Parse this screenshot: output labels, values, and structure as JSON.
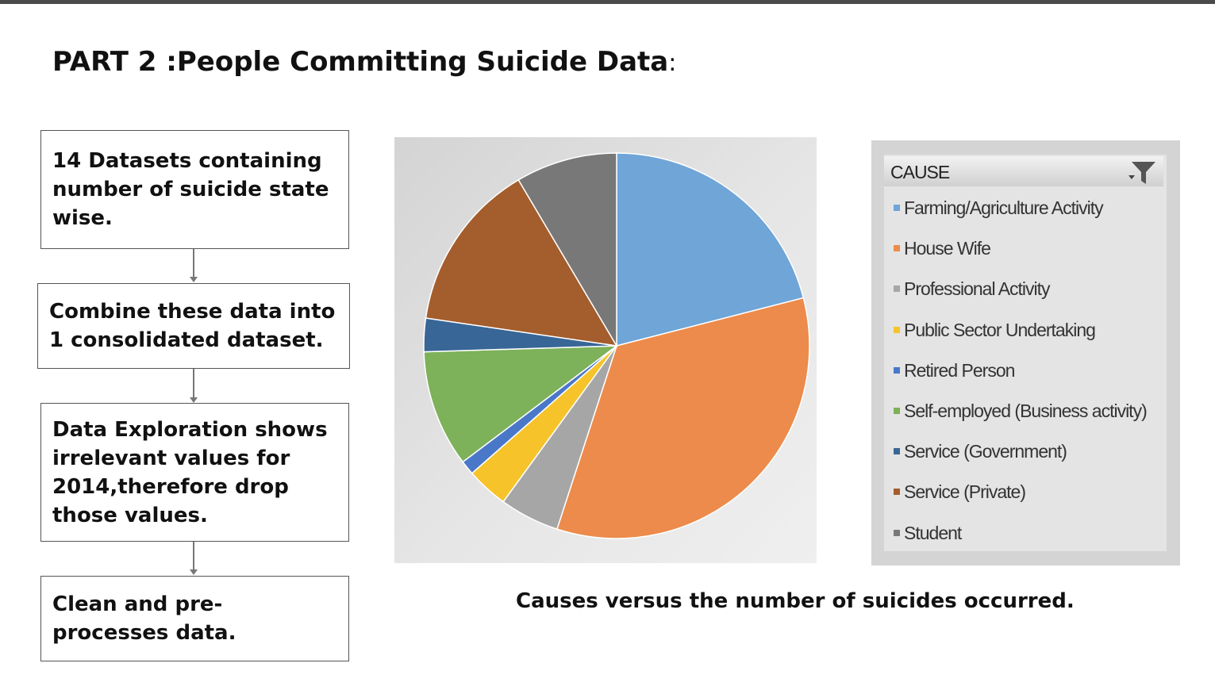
{
  "title": {
    "main": "PART 2 :People Committing Suicide Data",
    "colon": ":"
  },
  "flow": {
    "step1": "14 Datasets containing number of suicide state wise.",
    "step2": "Combine these data into 1 consolidated dataset.",
    "step3": "Data Exploration shows irrelevant values for 2014,therefore drop those values.",
    "step4": "Clean and pre-processes data."
  },
  "caption": "Causes versus the number of suicides occurred.",
  "chart_data": {
    "type": "pie",
    "title": "",
    "legend_title": "CAUSE",
    "legend_position": "right",
    "categories": [
      "Farming/Agriculture Activity",
      "House Wife",
      "Professional Activity",
      "Public Sector Undertaking",
      "Retired Person",
      "Self-employed (Business activity)",
      "Service (Government)",
      "Service (Private)",
      "Student"
    ],
    "values": [
      21,
      34,
      5,
      3.5,
      1.2,
      9.8,
      2.8,
      14.2,
      8.5
    ],
    "colors": [
      "#6fa5d7",
      "#ec8b4b",
      "#a6a6a6",
      "#f6c32a",
      "#4a78c9",
      "#7db15a",
      "#386696",
      "#a45d2c",
      "#787878"
    ]
  }
}
